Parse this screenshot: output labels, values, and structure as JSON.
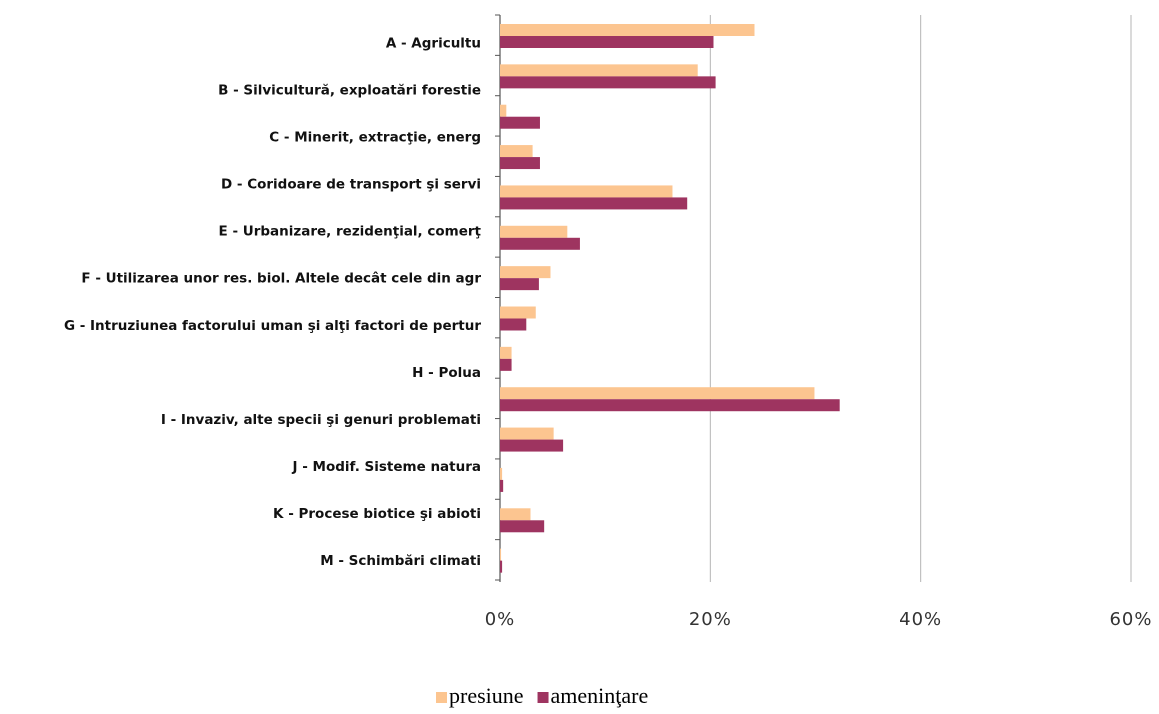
{
  "chart_data": {
    "type": "hbar",
    "categories": [
      "A - Agricultu",
      "B - Silvicultură, exploatări forestie",
      "C - Minerit, extracţie, energ",
      null,
      "D - Coridoare de transport şi servi",
      "E - Urbanizare, rezidenţial, comerţ",
      "F - Utilizarea unor res. biol. Altele decât cele din agr",
      "G - Intruziunea factorului uman şi alţi factori de pertur",
      "H - Polua",
      "I - Invaziv, alte specii şi genuri problemati",
      "J - Modif. Sisteme natura",
      "K - Procese biotice şi abioti",
      null,
      "M - Schimbări climati"
    ],
    "series": [
      {
        "name": "presiune",
        "color": "#fcc590",
        "values": [
          24.2,
          18.8,
          0.6,
          3.1,
          16.4,
          6.4,
          4.8,
          3.4,
          1.1,
          29.9,
          5.1,
          0.2,
          2.9,
          0.1
        ]
      },
      {
        "name": "ameninţare",
        "color": "#9e3460",
        "values": [
          20.3,
          20.5,
          3.8,
          3.8,
          17.8,
          7.6,
          3.7,
          2.5,
          1.1,
          32.3,
          6.0,
          0.3,
          4.2,
          0.2
        ]
      }
    ],
    "xlim": [
      0,
      60
    ],
    "xticks": [
      {
        "value": 0,
        "label": "0%"
      },
      {
        "value": 20,
        "label": "20%"
      },
      {
        "value": 40,
        "label": "40%"
      },
      {
        "value": 60,
        "label": "60%"
      }
    ],
    "grid": true,
    "legend": "bottom"
  }
}
